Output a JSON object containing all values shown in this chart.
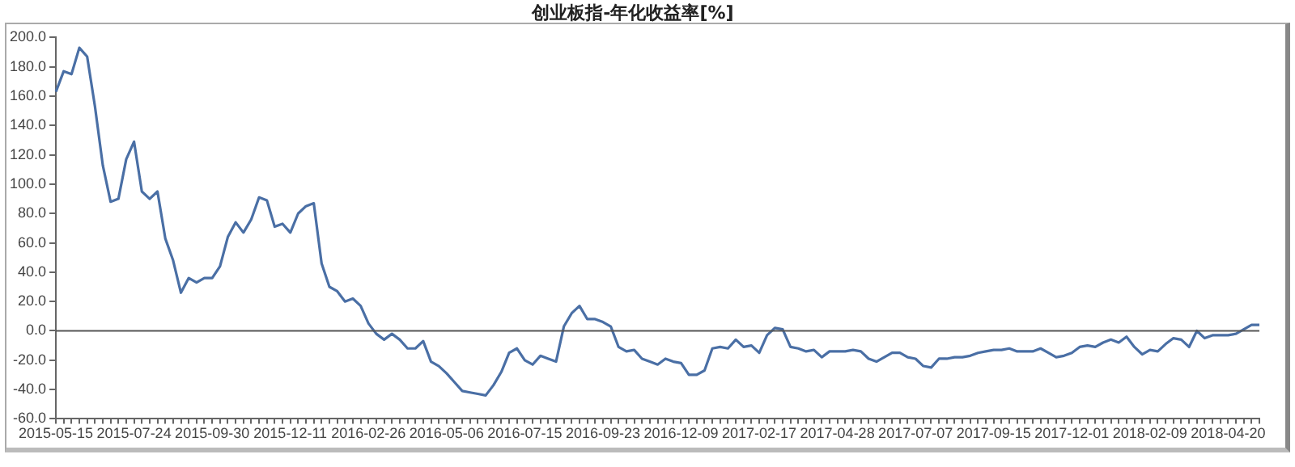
{
  "chart_data": {
    "type": "line",
    "title": "创业板指-年化收益率[%]",
    "categories": [
      "2015-05-15",
      null,
      null,
      null,
      null,
      null,
      null,
      null,
      null,
      null,
      "2015-07-24",
      null,
      null,
      null,
      null,
      null,
      null,
      null,
      null,
      null,
      "2015-09-30",
      null,
      null,
      null,
      null,
      null,
      null,
      null,
      null,
      null,
      "2015-12-11",
      null,
      null,
      null,
      null,
      null,
      null,
      null,
      null,
      null,
      "2016-02-26",
      null,
      null,
      null,
      null,
      null,
      null,
      null,
      null,
      null,
      "2016-05-06",
      null,
      null,
      null,
      null,
      null,
      null,
      null,
      null,
      null,
      "2016-07-15",
      null,
      null,
      null,
      null,
      null,
      null,
      null,
      null,
      null,
      "2016-09-23",
      null,
      null,
      null,
      null,
      null,
      null,
      null,
      null,
      null,
      "2016-12-09",
      null,
      null,
      null,
      null,
      null,
      null,
      null,
      null,
      null,
      "2017-02-17",
      null,
      null,
      null,
      null,
      null,
      null,
      null,
      null,
      null,
      "2017-04-28",
      null,
      null,
      null,
      null,
      null,
      null,
      null,
      null,
      null,
      "2017-07-07",
      null,
      null,
      null,
      null,
      null,
      null,
      null,
      null,
      null,
      "2017-09-15",
      null,
      null,
      null,
      null,
      null,
      null,
      null,
      null,
      null,
      "2017-12-01",
      null,
      null,
      null,
      null,
      null,
      null,
      null,
      null,
      null,
      "2018-02-09",
      null,
      null,
      null,
      null,
      null,
      null,
      null,
      null,
      null,
      "2018-04-20",
      null,
      null,
      null,
      null
    ],
    "series": [
      {
        "color": "#4a6fa5",
        "values": [
          163,
          177,
          175,
          193,
          187,
          153,
          113,
          88,
          90,
          117,
          129,
          95,
          90,
          95,
          63,
          48,
          26,
          36,
          33,
          36,
          36,
          44,
          64,
          74,
          67,
          76,
          91,
          89,
          71,
          73,
          67,
          80,
          85,
          87,
          46,
          30,
          27,
          20,
          22,
          17,
          5,
          -2,
          -6,
          -2,
          -6,
          -12,
          -12,
          -7,
          -21,
          -24,
          -29,
          -35,
          -41,
          -42,
          -43,
          -44,
          -37,
          -28,
          -15,
          -12,
          -20,
          -23,
          -17,
          -19,
          -21,
          3,
          12,
          17,
          8,
          8,
          6,
          3,
          -11,
          -14,
          -13,
          -19,
          -21,
          -23,
          -19,
          -21,
          -22,
          -30,
          -30,
          -27,
          -12,
          -11,
          -12,
          -6,
          -11,
          -10,
          -15,
          -3,
          2,
          1,
          -11,
          -12,
          -14,
          -13,
          -18,
          -14,
          -14,
          -14,
          -13,
          -14,
          -19,
          -21,
          -18,
          -15,
          -15,
          -18,
          -19,
          -24,
          -25,
          -19,
          -19,
          -18,
          -18,
          -17,
          -15,
          -14,
          -13,
          -13,
          -12,
          -14,
          -14,
          -14,
          -12,
          -15,
          -18,
          -17,
          -15,
          -11,
          -10,
          -11,
          -8,
          -6,
          -8,
          -4,
          -11,
          -16,
          -13,
          -14,
          -9,
          -5,
          -6,
          -11,
          0,
          -5,
          -3,
          -3,
          -3,
          -2,
          1,
          4,
          4
        ]
      }
    ],
    "ylim": [
      -60,
      200
    ],
    "yticks": [
      {
        "value": -60,
        "label": "-60.0"
      },
      {
        "value": -40,
        "label": "-40.0"
      },
      {
        "value": -20,
        "label": "-20.0"
      },
      {
        "value": 0,
        "label": "0.0"
      },
      {
        "value": 20,
        "label": "20.0"
      },
      {
        "value": 40,
        "label": "40.0"
      },
      {
        "value": 60,
        "label": "60.0"
      },
      {
        "value": 80,
        "label": "80.0"
      },
      {
        "value": 100,
        "label": "100.0"
      },
      {
        "value": 120,
        "label": "120.0"
      },
      {
        "value": 140,
        "label": "140.0"
      },
      {
        "value": 160,
        "label": "160.0"
      },
      {
        "value": 180,
        "label": "180.0"
      },
      {
        "value": 200,
        "label": "200.0"
      }
    ],
    "ref_lines": [
      {
        "axis": "y",
        "value": 0,
        "color": "#555555"
      }
    ],
    "marker": "none",
    "line_style": "solid"
  }
}
